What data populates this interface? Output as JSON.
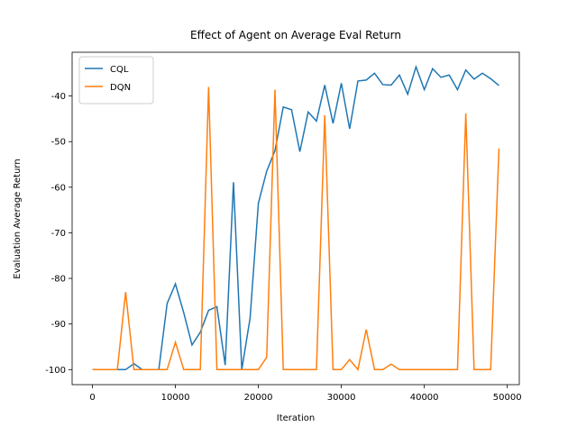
{
  "chart_data": {
    "type": "line",
    "title": "Effect of Agent on Average Eval Return",
    "x_label": "Iteration",
    "y_label": "Evaluation Average Return",
    "x": [
      0,
      1000,
      2000,
      3000,
      4000,
      5000,
      6000,
      7000,
      8000,
      9000,
      10000,
      11000,
      12000,
      13000,
      14000,
      15000,
      16000,
      17000,
      18000,
      19000,
      20000,
      21000,
      22000,
      23000,
      24000,
      25000,
      26000,
      27000,
      28000,
      29000,
      30000,
      31000,
      32000,
      33000,
      34000,
      35000,
      36000,
      37000,
      38000,
      39000,
      40000,
      41000,
      42000,
      43000,
      44000,
      45000,
      46000,
      47000,
      48000,
      49000
    ],
    "series": [
      {
        "name": "CQL",
        "color": "#1f77b4",
        "values": [
          -100,
          -100,
          -100,
          -100,
          -100,
          -98.7,
          -100,
          -100,
          -100,
          -85.5,
          -81.2,
          -87.5,
          -94.6,
          -91.8,
          -87,
          -86.2,
          -99,
          -58.9,
          -100,
          -88.7,
          -63.5,
          -56.5,
          -52,
          -42.4,
          -43,
          -52.2,
          -43.5,
          -45.5,
          -37.6,
          -46,
          -37.2,
          -47.2,
          -36.7,
          -36.5,
          -35,
          -37.5,
          -37.6,
          -35.4,
          -39.6,
          -33.6,
          -38.6,
          -34,
          -35.9,
          -35.4,
          -38.6,
          -34.3,
          -36.3,
          -35,
          -36.2,
          -37.7
        ]
      },
      {
        "name": "DQN",
        "color": "#ff7f0e",
        "values": [
          -100,
          -100,
          -100,
          -100,
          -83,
          -100,
          -100,
          -100,
          -100,
          -100,
          -94,
          -100,
          -100,
          -100,
          -38,
          -100,
          -100,
          -100,
          -100,
          -100,
          -100,
          -97.3,
          -38.6,
          -100,
          -100,
          -100,
          -100,
          -100,
          -44.2,
          -100,
          -100,
          -97.8,
          -100,
          -91.2,
          -100,
          -100,
          -98.8,
          -100,
          -100,
          -100,
          -100,
          -100,
          -100,
          -100,
          -100,
          -43.8,
          -100,
          -100,
          -100,
          -51.5
        ]
      }
    ],
    "xlim": [
      -2450,
      51450
    ],
    "ylim": [
      -103.3,
      -30.4
    ],
    "xticks": [
      0,
      10000,
      20000,
      30000,
      40000,
      50000
    ],
    "yticks": [
      -100,
      -90,
      -80,
      -70,
      -60,
      -50,
      -40
    ],
    "legend": "upper left",
    "grid": false
  }
}
